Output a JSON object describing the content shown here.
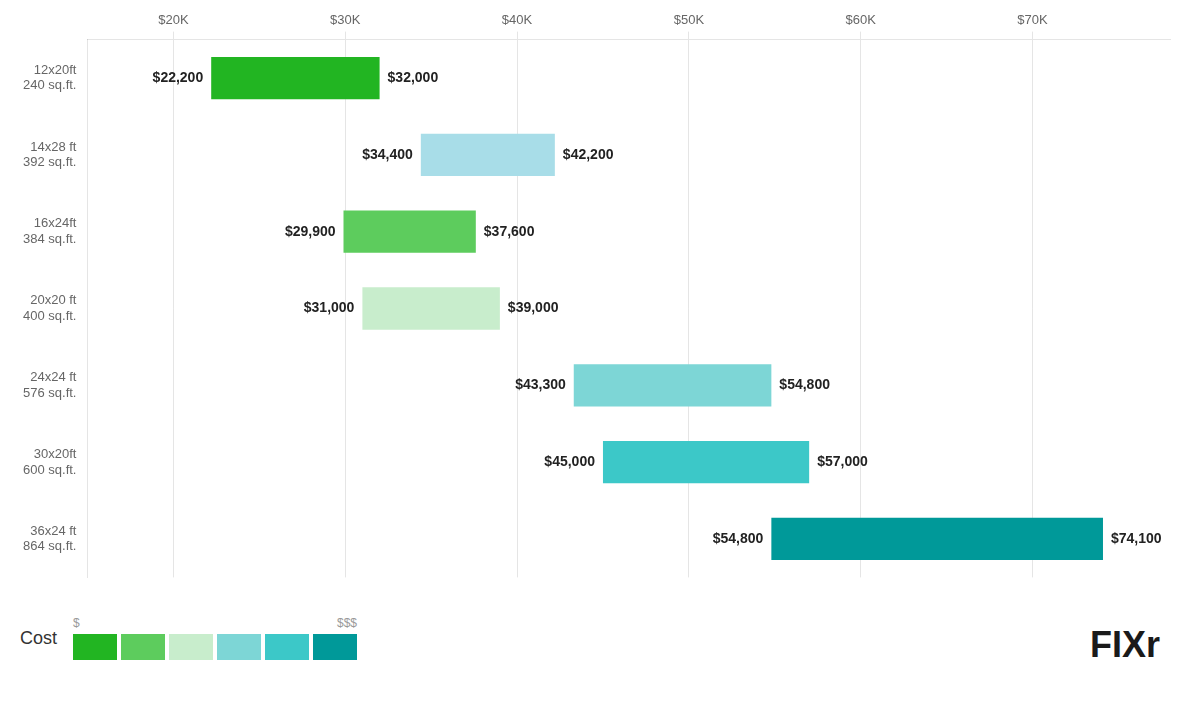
{
  "chart_data": {
    "type": "bar",
    "orientation": "horizontal",
    "categories": [
      [
        "12x20ft",
        "240 sq.ft."
      ],
      [
        "14x28 ft",
        "392 sq.ft."
      ],
      [
        "16x24ft",
        "384 sq.ft."
      ],
      [
        "20x20 ft",
        "400 sq.ft."
      ],
      [
        "24x24 ft",
        "576 sq.ft."
      ],
      [
        "30x20ft",
        "600 sq.ft."
      ],
      [
        "36x24 ft",
        "864 sq.ft."
      ]
    ],
    "values": [
      [
        22200,
        32000
      ],
      [
        34400,
        42200
      ],
      [
        29900,
        37600
      ],
      [
        31000,
        39000
      ],
      [
        43300,
        54800
      ],
      [
        45000,
        57000
      ],
      [
        54800,
        74100
      ]
    ],
    "value_labels": [
      [
        "$22,200",
        "$32,000"
      ],
      [
        "$34,400",
        "$42,200"
      ],
      [
        "$29,900",
        "$37,600"
      ],
      [
        "$31,000",
        "$39,000"
      ],
      [
        "$43,300",
        "$54,800"
      ],
      [
        "$45,000",
        "$57,000"
      ],
      [
        "$54,800",
        "$74,100"
      ]
    ],
    "data_labels": true,
    "colors": [
      "#22b522",
      "#a8dde8",
      "#5dcc5d",
      "#c8edcc",
      "#7dd6d6",
      "#3cc8c8",
      "#009999"
    ],
    "xlim": [
      15000,
      78000
    ],
    "xticks": [
      {
        "value": 20000,
        "label": "$20K"
      },
      {
        "value": 30000,
        "label": "$30K"
      },
      {
        "value": 40000,
        "label": "$40K"
      },
      {
        "value": 50000,
        "label": "$50K"
      },
      {
        "value": 60000,
        "label": "$60K"
      },
      {
        "value": 70000,
        "label": "$70K"
      }
    ],
    "grid": true,
    "color_scale": {
      "title": "Cost",
      "colors": [
        "#22b522",
        "#5dcc5d",
        "#c8edcc",
        "#7dd6d6",
        "#3cc8c8",
        "#009999"
      ],
      "labels": [
        "$",
        "$$$"
      ]
    },
    "annotations": [
      {
        "text": "FIXr"
      }
    ]
  }
}
